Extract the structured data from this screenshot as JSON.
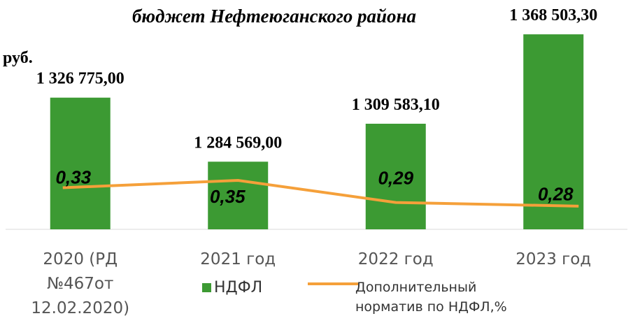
{
  "chart_data": {
    "type": "bar-line",
    "title": "бюджет Нефтеюганского района",
    "y_label": "руб.",
    "categories": [
      "2020 (РД №467от 12.02.2020)",
      "2021 год",
      "2022 год",
      "2023 год"
    ],
    "series": [
      {
        "name": "НДФЛ",
        "type": "bar",
        "color": "#3c9a33",
        "values": [
          1326775.0,
          1284569.0,
          1309583.1,
          1368503.3
        ],
        "value_labels": [
          "1 326 775,00",
          "1 284 569,00",
          "1 309 583,10",
          "1 368 503,30"
        ]
      },
      {
        "name": "Дополнительный норматив по НДФЛ,%",
        "type": "line",
        "axis": "y2",
        "color": "#f5a03a",
        "values": [
          0.33,
          0.35,
          0.29,
          0.28
        ],
        "value_labels": [
          "0,33",
          "0,35",
          "0,29",
          "0,28"
        ]
      }
    ],
    "ylim": [
      1240000,
      1375000
    ],
    "y2lim": [
      0.2,
      0.5
    ]
  }
}
